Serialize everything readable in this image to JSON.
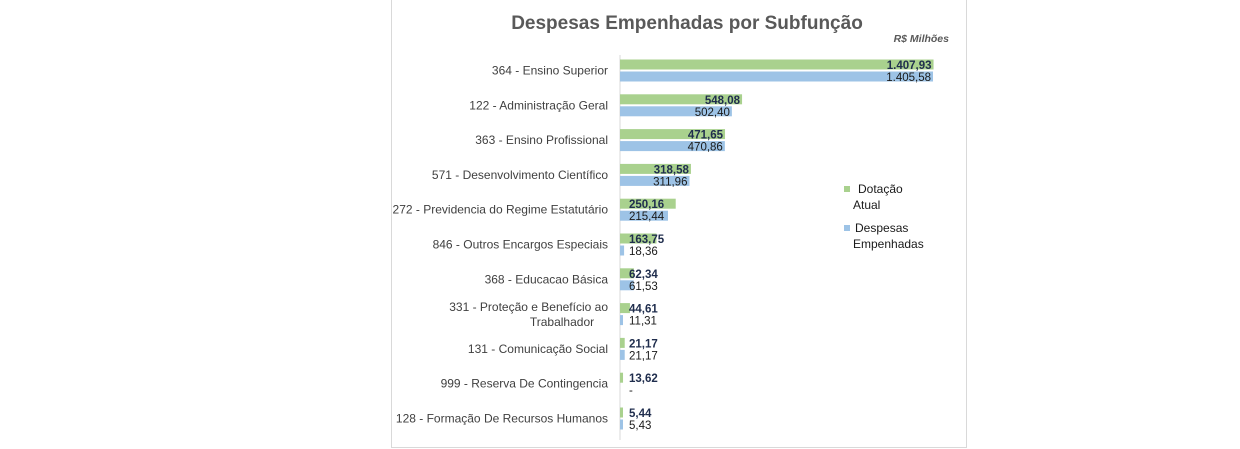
{
  "chart_data": {
    "type": "bar",
    "orientation": "horizontal",
    "title": "Despesas Empenhadas por Subfunção",
    "unit_label": "R$ Milhões",
    "categories": [
      "364 - Ensino Superior",
      "122 - Administração Geral",
      "363 - Ensino Profissional",
      "571 - Desenvolvimento Científico",
      "272 - Previdencia do Regime Estatutário",
      "846 - Outros Encargos Especiais",
      "368 - Educacao Básica",
      "331 - Proteção e Benefício ao Trabalhador",
      "131 - Comunicação Social",
      "999 - Reserva De Contingencia",
      "128 - Formação De Recursos Humanos"
    ],
    "category_lines": [
      [
        "364 - Ensino Superior"
      ],
      [
        "122 - Administração Geral"
      ],
      [
        "363 - Ensino Profissional"
      ],
      [
        "571 - Desenvolvimento Científico"
      ],
      [
        "272 - Previdencia do Regime Estatutário"
      ],
      [
        "846 - Outros Encargos Especiais"
      ],
      [
        "368 - Educacao Básica"
      ],
      [
        "331 - Proteção e Benefício ao",
        "Trabalhador"
      ],
      [
        "131 - Comunicação Social"
      ],
      [
        "999 - Reserva De Contingencia"
      ],
      [
        "128 - Formação De Recursos Humanos"
      ]
    ],
    "series": [
      {
        "name": "Dotação Atual",
        "legend_lines": [
          "Dotação",
          "Atual"
        ],
        "color": "#a9d18e",
        "values": [
          1407.93,
          548.08,
          471.65,
          318.58,
          250.16,
          163.75,
          62.34,
          44.61,
          21.17,
          13.62,
          5.44
        ],
        "labels": [
          "1.407,93",
          "548,08",
          "471,65",
          "318,58",
          "250,16",
          "163,75",
          "62,34",
          "44,61",
          "21,17",
          "13,62",
          "5,44"
        ]
      },
      {
        "name": "Despesas Empenhadas",
        "legend_lines": [
          "Despesas",
          "Empenhadas"
        ],
        "color": "#9dc3e6",
        "values": [
          1405.58,
          502.4,
          470.86,
          311.96,
          215.44,
          18.36,
          61.53,
          11.31,
          21.17,
          0,
          5.43
        ],
        "labels": [
          "1.405,58",
          "502,40",
          "470,86",
          "311,96",
          "215,44",
          "18,36",
          "61,53",
          "11,31",
          "21,17",
          "-",
          "5,43"
        ]
      }
    ],
    "xlim": [
      0,
      1410
    ],
    "grid": false,
    "legend_position": "right"
  }
}
